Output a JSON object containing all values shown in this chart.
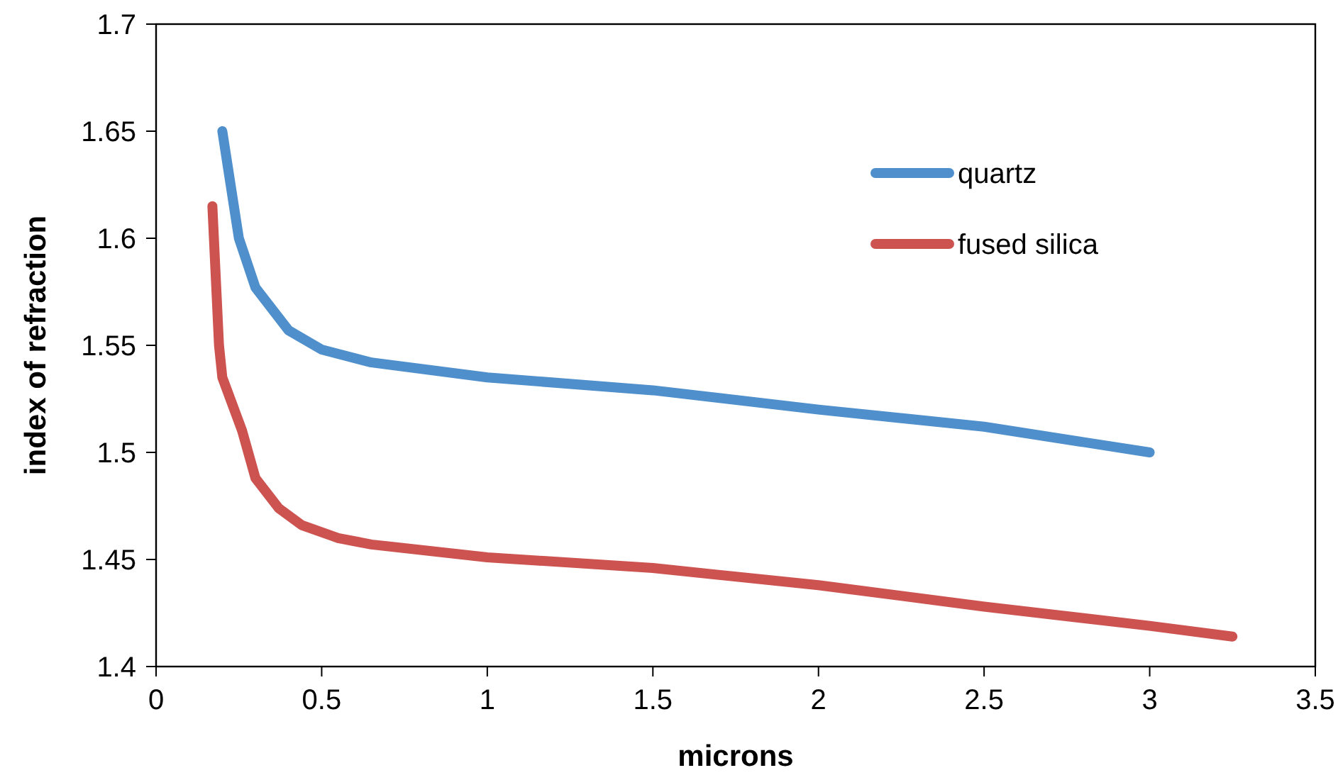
{
  "chart_data": {
    "type": "line",
    "xlabel": "microns",
    "ylabel": "index of refraction",
    "xlim": [
      0,
      3.5
    ],
    "xticks": [
      0,
      0.5,
      1,
      1.5,
      2,
      2.5,
      3,
      3.5
    ],
    "ylim": [
      1.4,
      1.7
    ],
    "yticks": [
      1.4,
      1.45,
      1.5,
      1.55,
      1.6,
      1.65,
      1.7
    ],
    "grid": false,
    "legend": "top right",
    "marker": "none",
    "line_style": "solid",
    "series": [
      {
        "name": "quartz",
        "color": "#4f8fcb",
        "x": [
          0.2,
          0.25,
          0.3,
          0.4,
          0.5,
          0.65,
          1.0,
          1.5,
          2.0,
          2.5,
          3.0
        ],
        "values": [
          1.65,
          1.6,
          1.577,
          1.557,
          1.548,
          1.542,
          1.535,
          1.529,
          1.52,
          1.512,
          1.5
        ]
      },
      {
        "name": "fused silica",
        "color": "#cd5350",
        "x": [
          0.17,
          0.19,
          0.2,
          0.26,
          0.3,
          0.37,
          0.44,
          0.55,
          0.65,
          1.0,
          1.5,
          2.0,
          2.5,
          3.0,
          3.25
        ],
        "values": [
          1.615,
          1.55,
          1.535,
          1.51,
          1.488,
          1.474,
          1.466,
          1.46,
          1.457,
          1.451,
          1.446,
          1.438,
          1.428,
          1.419,
          1.414
        ]
      }
    ]
  }
}
